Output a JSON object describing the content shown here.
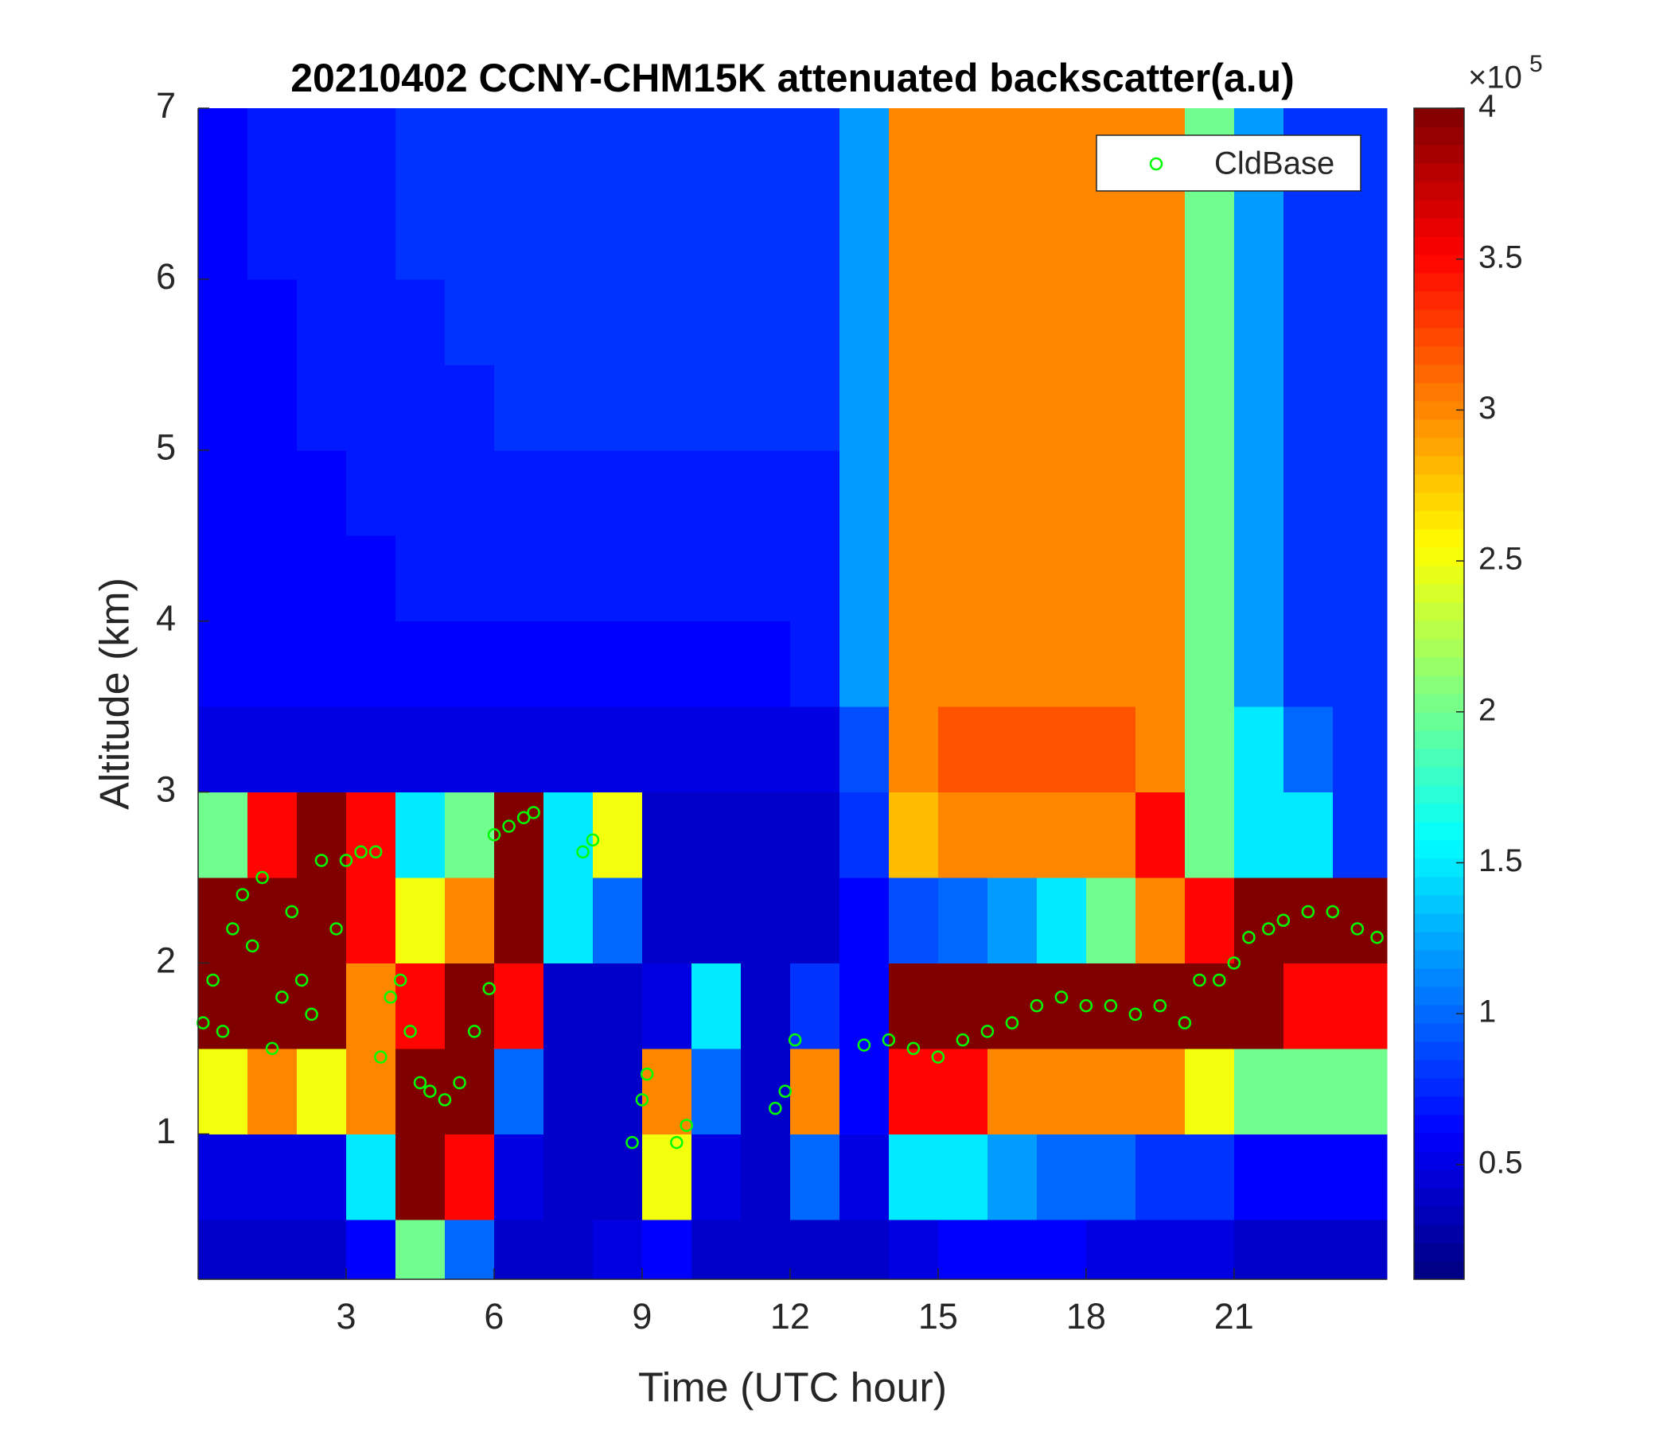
{
  "chart_data": {
    "type": "heatmap",
    "title": "20210402 CCNY-CHM15K attenuated backscatter(a.u)",
    "xlabel": "Time (UTC hour)",
    "ylabel": "Altitude (km)",
    "xlim": [
      0,
      24.1
    ],
    "ylim": [
      0.15,
      7
    ],
    "xticks": [
      3,
      6,
      9,
      12,
      15,
      18,
      21
    ],
    "yticks": [
      1,
      2,
      3,
      4,
      5,
      6,
      7
    ],
    "colormap": "jet",
    "clim": [
      0.12,
      4
    ],
    "cticks": [
      0.5,
      1,
      1.5,
      2,
      2.5,
      3,
      3.5,
      4
    ],
    "colorbar_multiplier": "×10",
    "colorbar_exponent": "5",
    "xbins": [
      0,
      1,
      2,
      3,
      4,
      5,
      6,
      7,
      8,
      9,
      10,
      11,
      12,
      13,
      14,
      15,
      16,
      17,
      18,
      19,
      20,
      21,
      22,
      23,
      24.1
    ],
    "ybins": [
      0.15,
      0.5,
      1,
      1.5,
      2,
      2.5,
      3,
      3.5,
      4,
      4.5,
      5,
      5.5,
      6,
      6.5,
      7
    ],
    "z": [
      [
        0.4,
        0.4,
        0.4,
        0.6,
        2.0,
        1.0,
        0.4,
        0.4,
        0.5,
        0.6,
        0.4,
        0.4,
        0.4,
        0.4,
        0.5,
        0.6,
        0.6,
        0.6,
        0.5,
        0.5,
        0.5,
        0.4,
        0.4,
        0.4
      ],
      [
        0.5,
        0.5,
        0.5,
        1.5,
        4,
        3.5,
        0.5,
        0.4,
        0.4,
        2.5,
        0.5,
        0.4,
        1.0,
        0.5,
        1.5,
        1.5,
        1.2,
        1.0,
        1.0,
        0.8,
        0.8,
        0.6,
        0.6,
        0.6
      ],
      [
        2.5,
        3,
        2.5,
        3,
        4,
        4,
        1.0,
        0.4,
        0.4,
        3.0,
        1.0,
        0.4,
        3.0,
        0.6,
        3.5,
        3.5,
        3,
        3,
        3,
        3,
        2.5,
        2,
        2,
        2
      ],
      [
        4,
        4,
        4,
        3,
        3.5,
        4,
        3.5,
        0.4,
        0.4,
        0.5,
        1.5,
        0.4,
        0.8,
        0.6,
        4,
        4,
        4,
        4,
        4,
        4,
        4,
        4,
        3.5,
        3.5
      ],
      [
        4,
        4,
        4,
        3.5,
        2.5,
        3,
        4,
        1.5,
        1.0,
        0.4,
        0.4,
        0.4,
        0.4,
        0.6,
        0.9,
        1.0,
        1.2,
        1.5,
        2,
        3,
        3.5,
        4,
        4,
        4
      ],
      [
        2,
        3.5,
        4,
        3.5,
        1.5,
        2,
        4,
        1.5,
        2.5,
        0.4,
        0.4,
        0.4,
        0.4,
        0.8,
        2.8,
        3,
        3,
        3,
        3,
        3.5,
        2,
        1.5,
        1.5,
        0.8
      ],
      [
        0.5,
        0.5,
        0.5,
        0.5,
        0.5,
        0.5,
        0.5,
        0.5,
        0.5,
        0.5,
        0.5,
        0.5,
        0.5,
        0.9,
        3,
        3.2,
        3.2,
        3.2,
        3.2,
        3,
        2,
        1.5,
        1,
        0.8
      ],
      [
        0.6,
        0.6,
        0.6,
        0.6,
        0.6,
        0.6,
        0.6,
        0.6,
        0.6,
        0.6,
        0.6,
        0.6,
        0.7,
        1.2,
        3,
        3,
        3,
        3,
        3,
        3,
        2,
        1.2,
        0.8,
        0.8
      ],
      [
        0.6,
        0.6,
        0.6,
        0.6,
        0.7,
        0.7,
        0.7,
        0.7,
        0.7,
        0.7,
        0.7,
        0.7,
        0.7,
        1.2,
        3,
        3,
        3,
        3,
        3,
        3,
        2,
        1.2,
        0.8,
        0.8
      ],
      [
        0.6,
        0.6,
        0.6,
        0.7,
        0.7,
        0.7,
        0.7,
        0.7,
        0.7,
        0.7,
        0.7,
        0.7,
        0.7,
        1.2,
        3,
        3,
        3,
        3,
        3,
        3,
        2,
        1.2,
        0.8,
        0.8
      ],
      [
        0.6,
        0.6,
        0.7,
        0.7,
        0.7,
        0.7,
        0.8,
        0.8,
        0.8,
        0.8,
        0.8,
        0.8,
        0.8,
        1.2,
        3,
        3,
        3,
        3,
        3,
        3,
        2,
        1.2,
        0.8,
        0.8
      ],
      [
        0.6,
        0.6,
        0.7,
        0.7,
        0.7,
        0.8,
        0.8,
        0.8,
        0.8,
        0.8,
        0.8,
        0.8,
        0.8,
        1.2,
        3,
        3,
        3,
        3,
        3,
        3,
        2,
        1.2,
        0.8,
        0.8
      ],
      [
        0.6,
        0.7,
        0.7,
        0.7,
        0.8,
        0.8,
        0.8,
        0.8,
        0.8,
        0.8,
        0.8,
        0.8,
        0.8,
        1.2,
        3,
        3,
        3,
        3,
        3,
        3,
        2,
        1.2,
        0.8,
        0.8
      ],
      [
        0.6,
        0.7,
        0.7,
        0.7,
        0.8,
        0.8,
        0.8,
        0.8,
        0.8,
        0.8,
        0.8,
        0.8,
        0.8,
        1.2,
        3,
        3,
        3,
        3,
        3,
        3,
        2,
        1.2,
        0.8,
        0.8
      ]
    ],
    "series": [
      {
        "name": "CldBase",
        "type": "scatter",
        "color": "#00ff00",
        "x": [
          0.1,
          0.3,
          0.5,
          0.7,
          0.9,
          1.1,
          1.3,
          1.5,
          1.7,
          1.9,
          2.1,
          2.3,
          2.5,
          2.8,
          3.0,
          3.3,
          3.6,
          3.7,
          3.9,
          4.1,
          4.3,
          4.5,
          4.7,
          5.0,
          5.3,
          5.6,
          5.9,
          6.0,
          6.3,
          6.6,
          6.8,
          7.8,
          8.0,
          8.8,
          9.0,
          9.1,
          9.7,
          9.9,
          11.7,
          11.9,
          12.1,
          13.5,
          14.0,
          14.5,
          15.0,
          15.5,
          16.0,
          16.5,
          17.0,
          17.5,
          18.0,
          18.5,
          19.0,
          19.5,
          20.0,
          20.3,
          20.7,
          21.0,
          21.3,
          21.7,
          22.0,
          22.5,
          23.0,
          23.5,
          23.9
        ],
        "y": [
          1.65,
          1.9,
          1.6,
          2.2,
          2.4,
          2.1,
          2.5,
          1.5,
          1.8,
          2.3,
          1.9,
          1.7,
          2.6,
          2.2,
          2.6,
          2.65,
          2.65,
          1.45,
          1.8,
          1.9,
          1.6,
          1.3,
          1.25,
          1.2,
          1.3,
          1.6,
          1.85,
          2.75,
          2.8,
          2.85,
          2.88,
          2.65,
          2.72,
          0.95,
          1.2,
          1.35,
          0.95,
          1.05,
          1.15,
          1.25,
          1.55,
          1.52,
          1.55,
          1.5,
          1.45,
          1.55,
          1.6,
          1.65,
          1.75,
          1.8,
          1.75,
          1.75,
          1.7,
          1.75,
          1.65,
          1.9,
          1.9,
          2.0,
          2.15,
          2.2,
          2.25,
          2.3,
          2.3,
          2.2,
          2.15
        ]
      }
    ],
    "legend_loc": "upper right"
  }
}
